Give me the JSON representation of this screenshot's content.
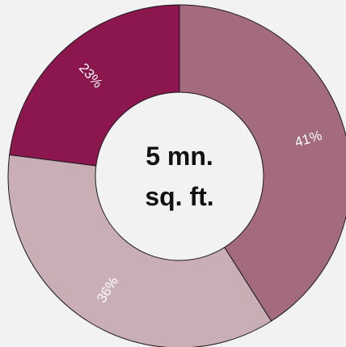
{
  "chart_data": {
    "type": "pie",
    "variant": "donut",
    "title": "",
    "center_label": [
      "5 mn.",
      "sq. ft."
    ],
    "slices": [
      {
        "label": "41%",
        "value": 41,
        "color": "#a46a7e"
      },
      {
        "label": "36%",
        "value": 36,
        "color": "#c9aeb6"
      },
      {
        "label": "23%",
        "value": 23,
        "color": "#8c164e"
      }
    ],
    "start_angle": "12 o'clock",
    "direction": "clockwise",
    "legend": "none"
  },
  "colors": {
    "background": "#f2f2f2",
    "hole": "#f2f2f2",
    "outline": "#1a1a1a",
    "slice_label_text": "#ffffff",
    "center_text": "#111111"
  }
}
